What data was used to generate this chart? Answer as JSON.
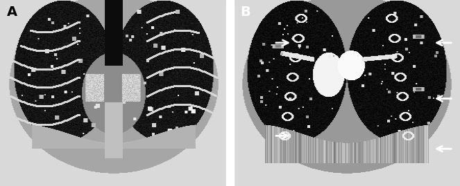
{
  "panel_A_label": "A",
  "panel_B_label": "B",
  "label_fontsize": 14,
  "label_color": "black",
  "label_B_color": "white",
  "background_color": "white",
  "border_color": "white",
  "figsize": [
    6.63,
    2.69
  ],
  "dpi": 100
}
